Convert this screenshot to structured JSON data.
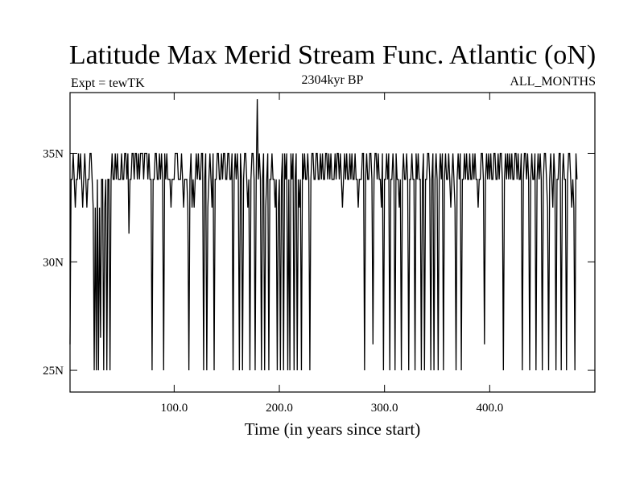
{
  "chart_data": {
    "type": "line",
    "title": "Latitude Max Merid Stream Func. Atlantic (oN)",
    "subtitle_left": "Expt = tewTK",
    "subtitle_center": "2304kyr BP",
    "subtitle_right": "ALL_MONTHS",
    "xlabel": "Time (in years since start)",
    "ylabel": "",
    "xlim": [
      1,
      500
    ],
    "ylim": [
      24,
      37.8
    ],
    "x_ticks": [
      {
        "value": 100,
        "label": "100.0"
      },
      {
        "value": 200,
        "label": "200.0"
      },
      {
        "value": 300,
        "label": "300.0"
      },
      {
        "value": 400,
        "label": "400.0"
      }
    ],
    "y_ticks": [
      {
        "value": 25,
        "label": "25N"
      },
      {
        "value": 30,
        "label": "30N"
      },
      {
        "value": 35,
        "label": "35N"
      }
    ],
    "grid": false,
    "series": [
      {
        "color": "#000000",
        "x_start": 1,
        "x_step": 1,
        "values": [
          26.2,
          33.8,
          33.8,
          35,
          33.8,
          32.5,
          33.8,
          33.8,
          35,
          33.8,
          35,
          33.8,
          32.5,
          33.8,
          35,
          33.8,
          32.5,
          33.8,
          33.8,
          35,
          35,
          33.8,
          32.5,
          25,
          32.5,
          25,
          33.8,
          25,
          32.5,
          26.5,
          33.8,
          33.8,
          25,
          32.5,
          33.8,
          25,
          33.8,
          33.8,
          25,
          33.8,
          35,
          33.8,
          33.8,
          35,
          33.8,
          35,
          33.8,
          33.8,
          33.8,
          35,
          33.8,
          33.8,
          35,
          35,
          33.8,
          35,
          31.3,
          33.8,
          33.8,
          35,
          35,
          33.8,
          35,
          35,
          33.8,
          35,
          33.8,
          35,
          35,
          35,
          33.8,
          35,
          35,
          35,
          33.8,
          35,
          33.8,
          33.8,
          25,
          33.8,
          33.8,
          35,
          35,
          33.8,
          33.8,
          35,
          33.8,
          35,
          33.8,
          25,
          35,
          33.8,
          35,
          33.8,
          33.8,
          33.8,
          32.5,
          33.8,
          33.8,
          33.8,
          35,
          35,
          35,
          33.8,
          33.8,
          33.8,
          35,
          33.8,
          32.5,
          33.8,
          33.8,
          33.8,
          32.5,
          25,
          33.8,
          35,
          32.5,
          33.8,
          32.5,
          33.8,
          35,
          33.8,
          35,
          33.8,
          33.8,
          35,
          35,
          25,
          33.8,
          35,
          25,
          32.5,
          33.8,
          35,
          33.8,
          32.5,
          35,
          25,
          33.8,
          33.8,
          35,
          35,
          33.8,
          33.8,
          35,
          33.8,
          35,
          35,
          33.8,
          33.8,
          35,
          35,
          33.8,
          33.8,
          35,
          25,
          33.8,
          35,
          33.8,
          35,
          33.8,
          25,
          35,
          33.8,
          25,
          33.8,
          35,
          35,
          33.8,
          32.5,
          33.8,
          25,
          33.8,
          35,
          35,
          33.8,
          25,
          33.8,
          37.5,
          33.8,
          35,
          33.8,
          25,
          33.8,
          35,
          25,
          32.5,
          33.8,
          35,
          25,
          33.8,
          33.8,
          35,
          33.8,
          33.8,
          32.5,
          33.8,
          25,
          32.5,
          33.8,
          25,
          33.8,
          35,
          25,
          35,
          33.8,
          35,
          25,
          33.8,
          25,
          35,
          33.8,
          35,
          25,
          33.8,
          35,
          25,
          33.8,
          32.5,
          33.8,
          25,
          35,
          33.8,
          35,
          33.8,
          33.8,
          35,
          33.8,
          25,
          33.8,
          35,
          35,
          33.8,
          33.8,
          35,
          35,
          33.8,
          33.8,
          35,
          33.8,
          35,
          33.8,
          33.8,
          35,
          35,
          33.8,
          35,
          33.8,
          35,
          33.8,
          33.8,
          33.8,
          35,
          33.8,
          35,
          35,
          33.8,
          35,
          33.8,
          32.5,
          33.8,
          35,
          33.8,
          35,
          33.8,
          33.8,
          35,
          33.8,
          35,
          33.8,
          33.8,
          35,
          33.8,
          33.8,
          32.5,
          33.8,
          33.8,
          33.8,
          35,
          35,
          25,
          33.8,
          35,
          33.8,
          33.8,
          35,
          35,
          33.8,
          26.2,
          33.8,
          35,
          35,
          33.8,
          35,
          33.8,
          33.8,
          32.5,
          35,
          25,
          33.8,
          33.8,
          35,
          33.8,
          35,
          25,
          33.8,
          33.8,
          35,
          33.8,
          25,
          35,
          33.8,
          33.8,
          32.5,
          33.8,
          25,
          33.8,
          35,
          33.8,
          33.8,
          35,
          33.8,
          25,
          33.8,
          33.8,
          35,
          33.8,
          33.8,
          25,
          35,
          33.8,
          35,
          33.8,
          33.8,
          25,
          33.8,
          35,
          25,
          33.8,
          33.8,
          35,
          35,
          33.8,
          25,
          33.8,
          35,
          25,
          33.8,
          35,
          33.8,
          25,
          33.8,
          35,
          33.8,
          35,
          25,
          33.8,
          35,
          33.8,
          33.8,
          35,
          33.8,
          32.5,
          33.8,
          35,
          33.8,
          32.5,
          25,
          33.8,
          35,
          33.8,
          35,
          25,
          33.8,
          33.8,
          35,
          33.8,
          35,
          33.8,
          33.8,
          35,
          33.8,
          33.8,
          35,
          33.8,
          35,
          33.8,
          33.8,
          32.5,
          33.8,
          33.8,
          35,
          35,
          33.8,
          26.2,
          33.8,
          35,
          33.8,
          35,
          33.8,
          35,
          33.8,
          33.8,
          35,
          35,
          33.8,
          33.8,
          35,
          33.8,
          35,
          35,
          33.8,
          25,
          33.8,
          35,
          33.8,
          35,
          33.8,
          35,
          33.8,
          35,
          33.8,
          33.8,
          35,
          35,
          33.8,
          35,
          33.8,
          33.8,
          35,
          25,
          33.8,
          35,
          35,
          33.8,
          35,
          33.8,
          25,
          33.8,
          35,
          33.8,
          33.8,
          35,
          25,
          33.8,
          35,
          33.8,
          35,
          33.8,
          25,
          33.8,
          35,
          35,
          33.8,
          32.5,
          25,
          33.8,
          35,
          33.8,
          32.5,
          35,
          33.8,
          25,
          33.8,
          33.8,
          35,
          35,
          25,
          33.8,
          35,
          33.8,
          33.8,
          25,
          33.8,
          35,
          35,
          33.8,
          32.5,
          33.8,
          32.5,
          25,
          35,
          33.8
        ]
      }
    ]
  }
}
